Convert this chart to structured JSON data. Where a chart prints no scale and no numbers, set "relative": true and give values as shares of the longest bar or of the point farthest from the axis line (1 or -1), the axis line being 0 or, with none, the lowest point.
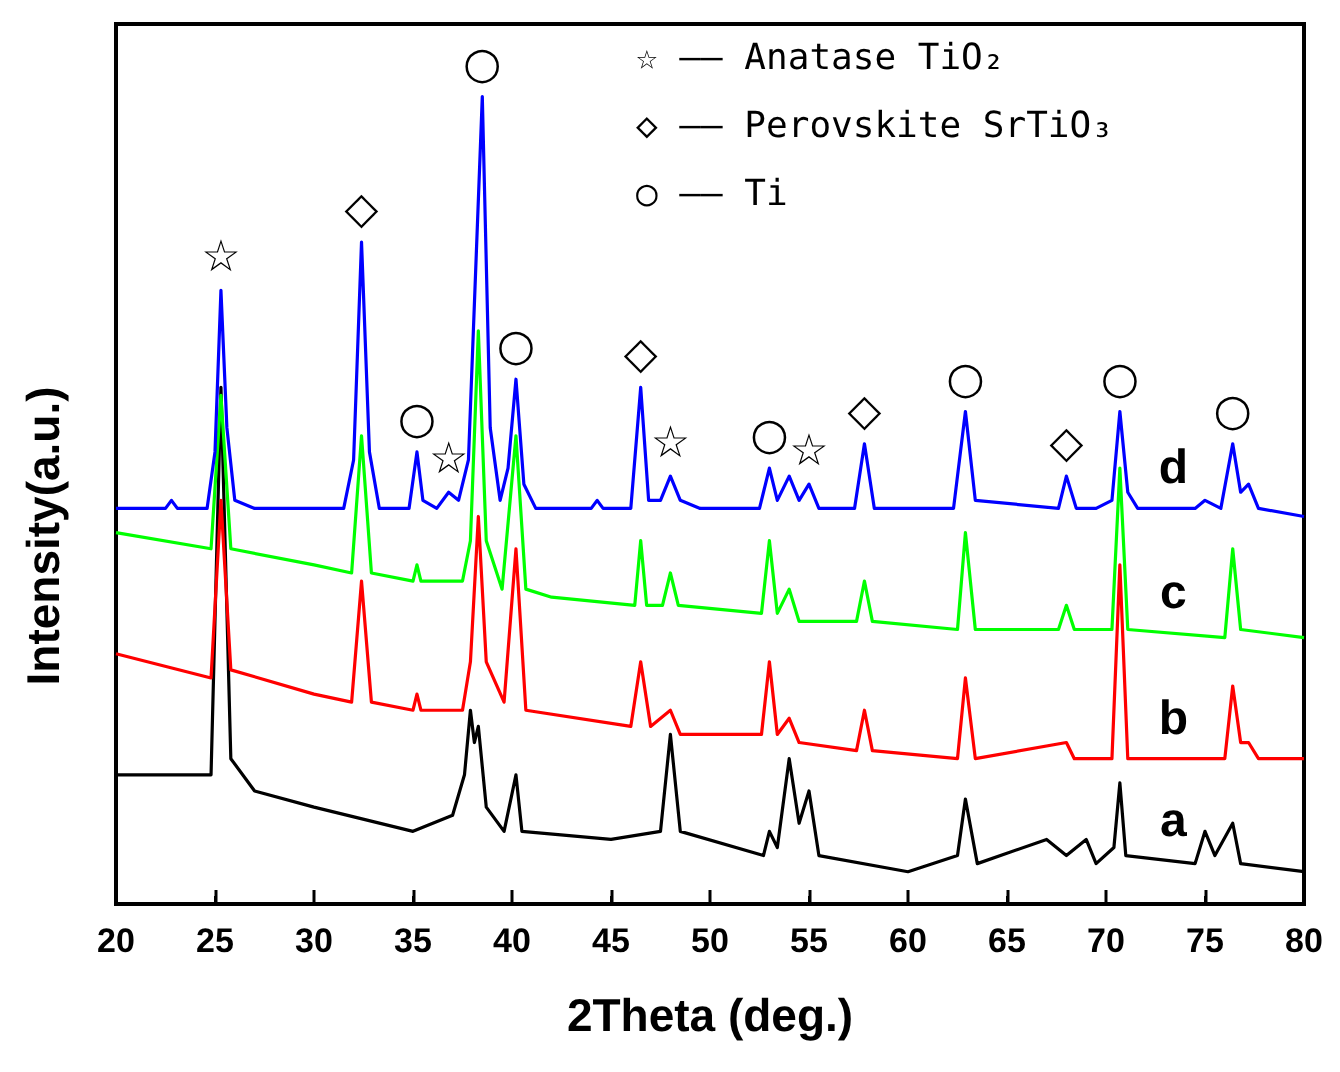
{
  "chart_data": {
    "type": "line",
    "relative": true,
    "xlabel": "2Theta (deg.)",
    "ylabel": "Intensity(a.u.)",
    "xlim": [
      20,
      80
    ],
    "xticks": [
      20,
      25,
      30,
      35,
      40,
      45,
      50,
      55,
      60,
      65,
      70,
      75,
      80
    ],
    "tick_labels": "x",
    "series": [
      {
        "name": "a",
        "color": "#000000",
        "x": [
          20,
          24.8,
          25.3,
          25.8,
          27,
          30,
          35,
          37.0,
          37.6,
          37.9,
          38.1,
          38.3,
          38.7,
          39.6,
          40.2,
          40.5,
          45,
          47.5,
          48.0,
          48.5,
          52.7,
          53.0,
          53.4,
          54.0,
          54.5,
          55.0,
          55.5,
          60,
          62.5,
          62.9,
          63.5,
          67,
          68,
          69.0,
          69.5,
          70.4,
          70.7,
          71.0,
          74.5,
          75.0,
          75.5,
          76.4,
          76.8,
          80
        ],
        "values": [
          0.16,
          0.16,
          0.64,
          0.18,
          0.14,
          0.12,
          0.09,
          0.11,
          0.16,
          0.24,
          0.2,
          0.22,
          0.12,
          0.09,
          0.16,
          0.09,
          0.08,
          0.09,
          0.21,
          0.09,
          0.06,
          0.09,
          0.07,
          0.18,
          0.1,
          0.14,
          0.06,
          0.04,
          0.06,
          0.13,
          0.05,
          0.08,
          0.06,
          0.08,
          0.05,
          0.07,
          0.15,
          0.06,
          0.05,
          0.09,
          0.06,
          0.1,
          0.05,
          0.04
        ]
      },
      {
        "name": "b",
        "color": "#ff0000",
        "x": [
          20,
          24.8,
          25.3,
          25.8,
          30,
          31.9,
          32.4,
          32.9,
          35.0,
          35.2,
          35.4,
          37.5,
          37.9,
          38.3,
          38.7,
          39.6,
          40.2,
          40.7,
          46.0,
          46.5,
          47.0,
          48.0,
          48.5,
          52.6,
          53.0,
          53.4,
          54.0,
          54.5,
          57.4,
          57.8,
          58.2,
          62.5,
          62.9,
          63.4,
          68,
          68.4,
          70.3,
          70.7,
          71.1,
          76.0,
          76.4,
          76.8,
          77.2,
          77.7,
          80
        ],
        "values": [
          0.31,
          0.28,
          0.5,
          0.29,
          0.26,
          0.25,
          0.4,
          0.25,
          0.24,
          0.26,
          0.24,
          0.24,
          0.3,
          0.48,
          0.3,
          0.25,
          0.44,
          0.24,
          0.22,
          0.3,
          0.22,
          0.24,
          0.21,
          0.21,
          0.3,
          0.21,
          0.23,
          0.2,
          0.19,
          0.24,
          0.19,
          0.18,
          0.28,
          0.18,
          0.2,
          0.18,
          0.18,
          0.42,
          0.18,
          0.18,
          0.27,
          0.2,
          0.2,
          0.18,
          0.18
        ]
      },
      {
        "name": "c",
        "color": "#00ff00",
        "x": [
          20,
          24.8,
          25.3,
          25.8,
          30,
          31.9,
          32.4,
          32.9,
          35.0,
          35.2,
          35.4,
          37.5,
          37.9,
          38.3,
          38.7,
          39.5,
          40.2,
          40.7,
          42,
          46.2,
          46.5,
          46.8,
          47.6,
          48.0,
          48.4,
          52.6,
          53.0,
          53.4,
          54.0,
          54.5,
          57.4,
          57.8,
          58.2,
          62.5,
          62.9,
          63.4,
          67.6,
          68.0,
          68.4,
          70.3,
          70.7,
          71.1,
          76.0,
          76.4,
          76.8,
          80
        ],
        "values": [
          0.46,
          0.44,
          0.63,
          0.44,
          0.42,
          0.41,
          0.58,
          0.41,
          0.4,
          0.42,
          0.4,
          0.4,
          0.45,
          0.71,
          0.45,
          0.39,
          0.58,
          0.39,
          0.38,
          0.37,
          0.45,
          0.37,
          0.37,
          0.41,
          0.37,
          0.36,
          0.45,
          0.36,
          0.39,
          0.35,
          0.35,
          0.4,
          0.35,
          0.34,
          0.46,
          0.34,
          0.34,
          0.37,
          0.34,
          0.34,
          0.54,
          0.34,
          0.33,
          0.44,
          0.34,
          0.33
        ]
      },
      {
        "name": "d",
        "color": "#0000ff",
        "x": [
          20,
          22.5,
          22.8,
          23.1,
          24.6,
          25.0,
          25.3,
          25.6,
          26.0,
          27,
          31.5,
          32.0,
          32.4,
          32.8,
          33.3,
          34.8,
          35.2,
          35.5,
          36.2,
          36.8,
          37.3,
          37.8,
          38.5,
          38.9,
          39.4,
          39.8,
          40.2,
          40.6,
          41.2,
          44,
          44.3,
          44.6,
          46.0,
          46.5,
          46.9,
          47.5,
          48.0,
          48.5,
          49.5,
          52.5,
          53.0,
          53.4,
          54.0,
          54.5,
          55.0,
          55.5,
          57.3,
          57.8,
          58.3,
          62.3,
          62.9,
          63.4,
          67.6,
          68.0,
          68.5,
          69.5,
          70.3,
          70.7,
          71.1,
          71.6,
          74.5,
          75,
          75.8,
          76.4,
          76.8,
          77.2,
          77.7,
          80
        ],
        "values": [
          0.49,
          0.49,
          0.5,
          0.49,
          0.49,
          0.56,
          0.76,
          0.59,
          0.5,
          0.49,
          0.49,
          0.55,
          0.82,
          0.56,
          0.49,
          0.49,
          0.56,
          0.5,
          0.49,
          0.51,
          0.5,
          0.55,
          1.0,
          0.59,
          0.5,
          0.54,
          0.65,
          0.52,
          0.49,
          0.49,
          0.5,
          0.49,
          0.49,
          0.64,
          0.5,
          0.5,
          0.53,
          0.5,
          0.49,
          0.49,
          0.54,
          0.5,
          0.53,
          0.5,
          0.52,
          0.49,
          0.49,
          0.57,
          0.49,
          0.49,
          0.61,
          0.5,
          0.49,
          0.53,
          0.49,
          0.49,
          0.5,
          0.61,
          0.51,
          0.49,
          0.49,
          0.5,
          0.49,
          0.57,
          0.51,
          0.52,
          0.49,
          0.48
        ]
      }
    ],
    "annotations": [
      "☆ —— Anatase TiO₂",
      "◇ —— Perovskite SrTiO₃",
      "○ —— Ti",
      {
        "text": "☆",
        "x": 25.3,
        "y": 0.76
      },
      {
        "text": "☆",
        "x": 36.8,
        "y": 0.51
      },
      {
        "text": "☆",
        "x": 48.0,
        "y": 0.53
      },
      {
        "text": "☆",
        "x": 55.0,
        "y": 0.52
      },
      {
        "text": "◇",
        "x": 32.4,
        "y": 0.82
      },
      {
        "text": "◇",
        "x": 46.5,
        "y": 0.64
      },
      {
        "text": "◇",
        "x": 57.8,
        "y": 0.57
      },
      {
        "text": "◇",
        "x": 68.0,
        "y": 0.53
      },
      {
        "text": "○",
        "x": 35.2,
        "y": 0.56
      },
      {
        "text": "○",
        "x": 38.5,
        "y": 1.0
      },
      {
        "text": "○",
        "x": 40.2,
        "y": 0.65
      },
      {
        "text": "○",
        "x": 53.0,
        "y": 0.54
      },
      {
        "text": "○",
        "x": 62.9,
        "y": 0.61
      },
      {
        "text": "○",
        "x": 70.7,
        "y": 0.61
      },
      {
        "text": "○",
        "x": 76.4,
        "y": 0.57
      }
    ]
  }
}
